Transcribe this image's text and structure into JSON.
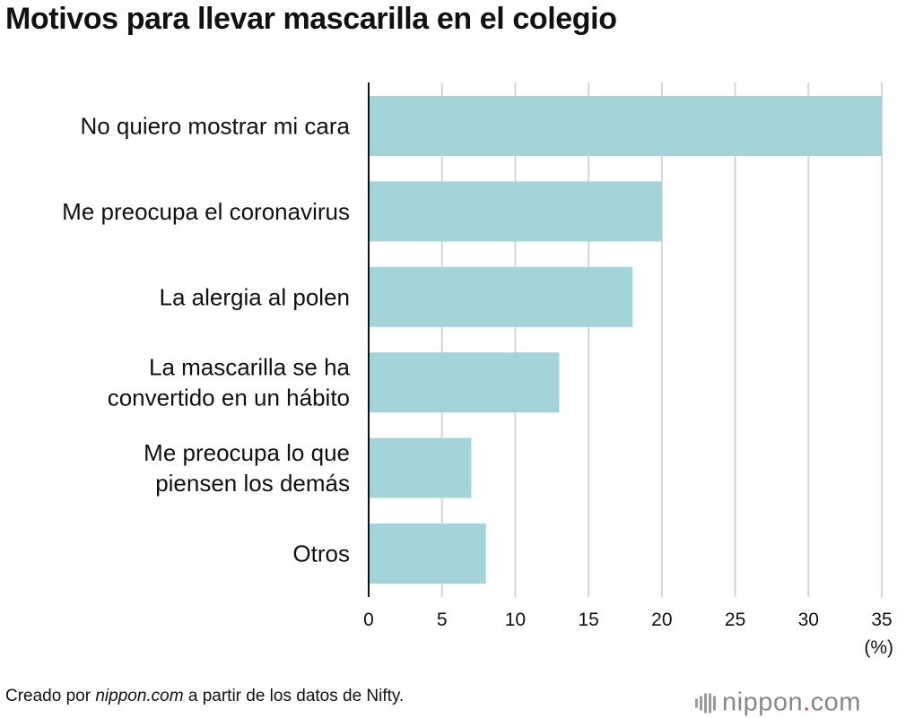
{
  "title": "Motivos para llevar mascarilla en el colegio",
  "credit": {
    "prefix": "Creado por ",
    "site": "nippon.com",
    "suffix": " a partir de los datos de Nifty."
  },
  "logo": {
    "name": "nippon",
    "dot": ".",
    "tld": "com"
  },
  "colors": {
    "bar": "#a2d4da",
    "grid": "#d6d6d6",
    "axis": "#111111"
  },
  "chart_data": {
    "type": "bar",
    "orientation": "horizontal",
    "title": "Motivos para llevar mascarilla en el colegio",
    "categories": [
      [
        "No quiero mostrar mi cara"
      ],
      [
        "Me preocupa el coronavirus"
      ],
      [
        "La alergia al polen"
      ],
      [
        "La mascarilla se ha",
        "convertido en un hábito"
      ],
      [
        "Me preocupa lo que",
        "piensen los demás"
      ],
      [
        "Otros"
      ]
    ],
    "values": [
      35,
      20,
      18,
      13,
      7,
      8
    ],
    "xlim": [
      0,
      35
    ],
    "xticks": [
      0,
      5,
      10,
      15,
      20,
      25,
      30,
      35
    ],
    "unit": "(%)",
    "grid": true
  }
}
